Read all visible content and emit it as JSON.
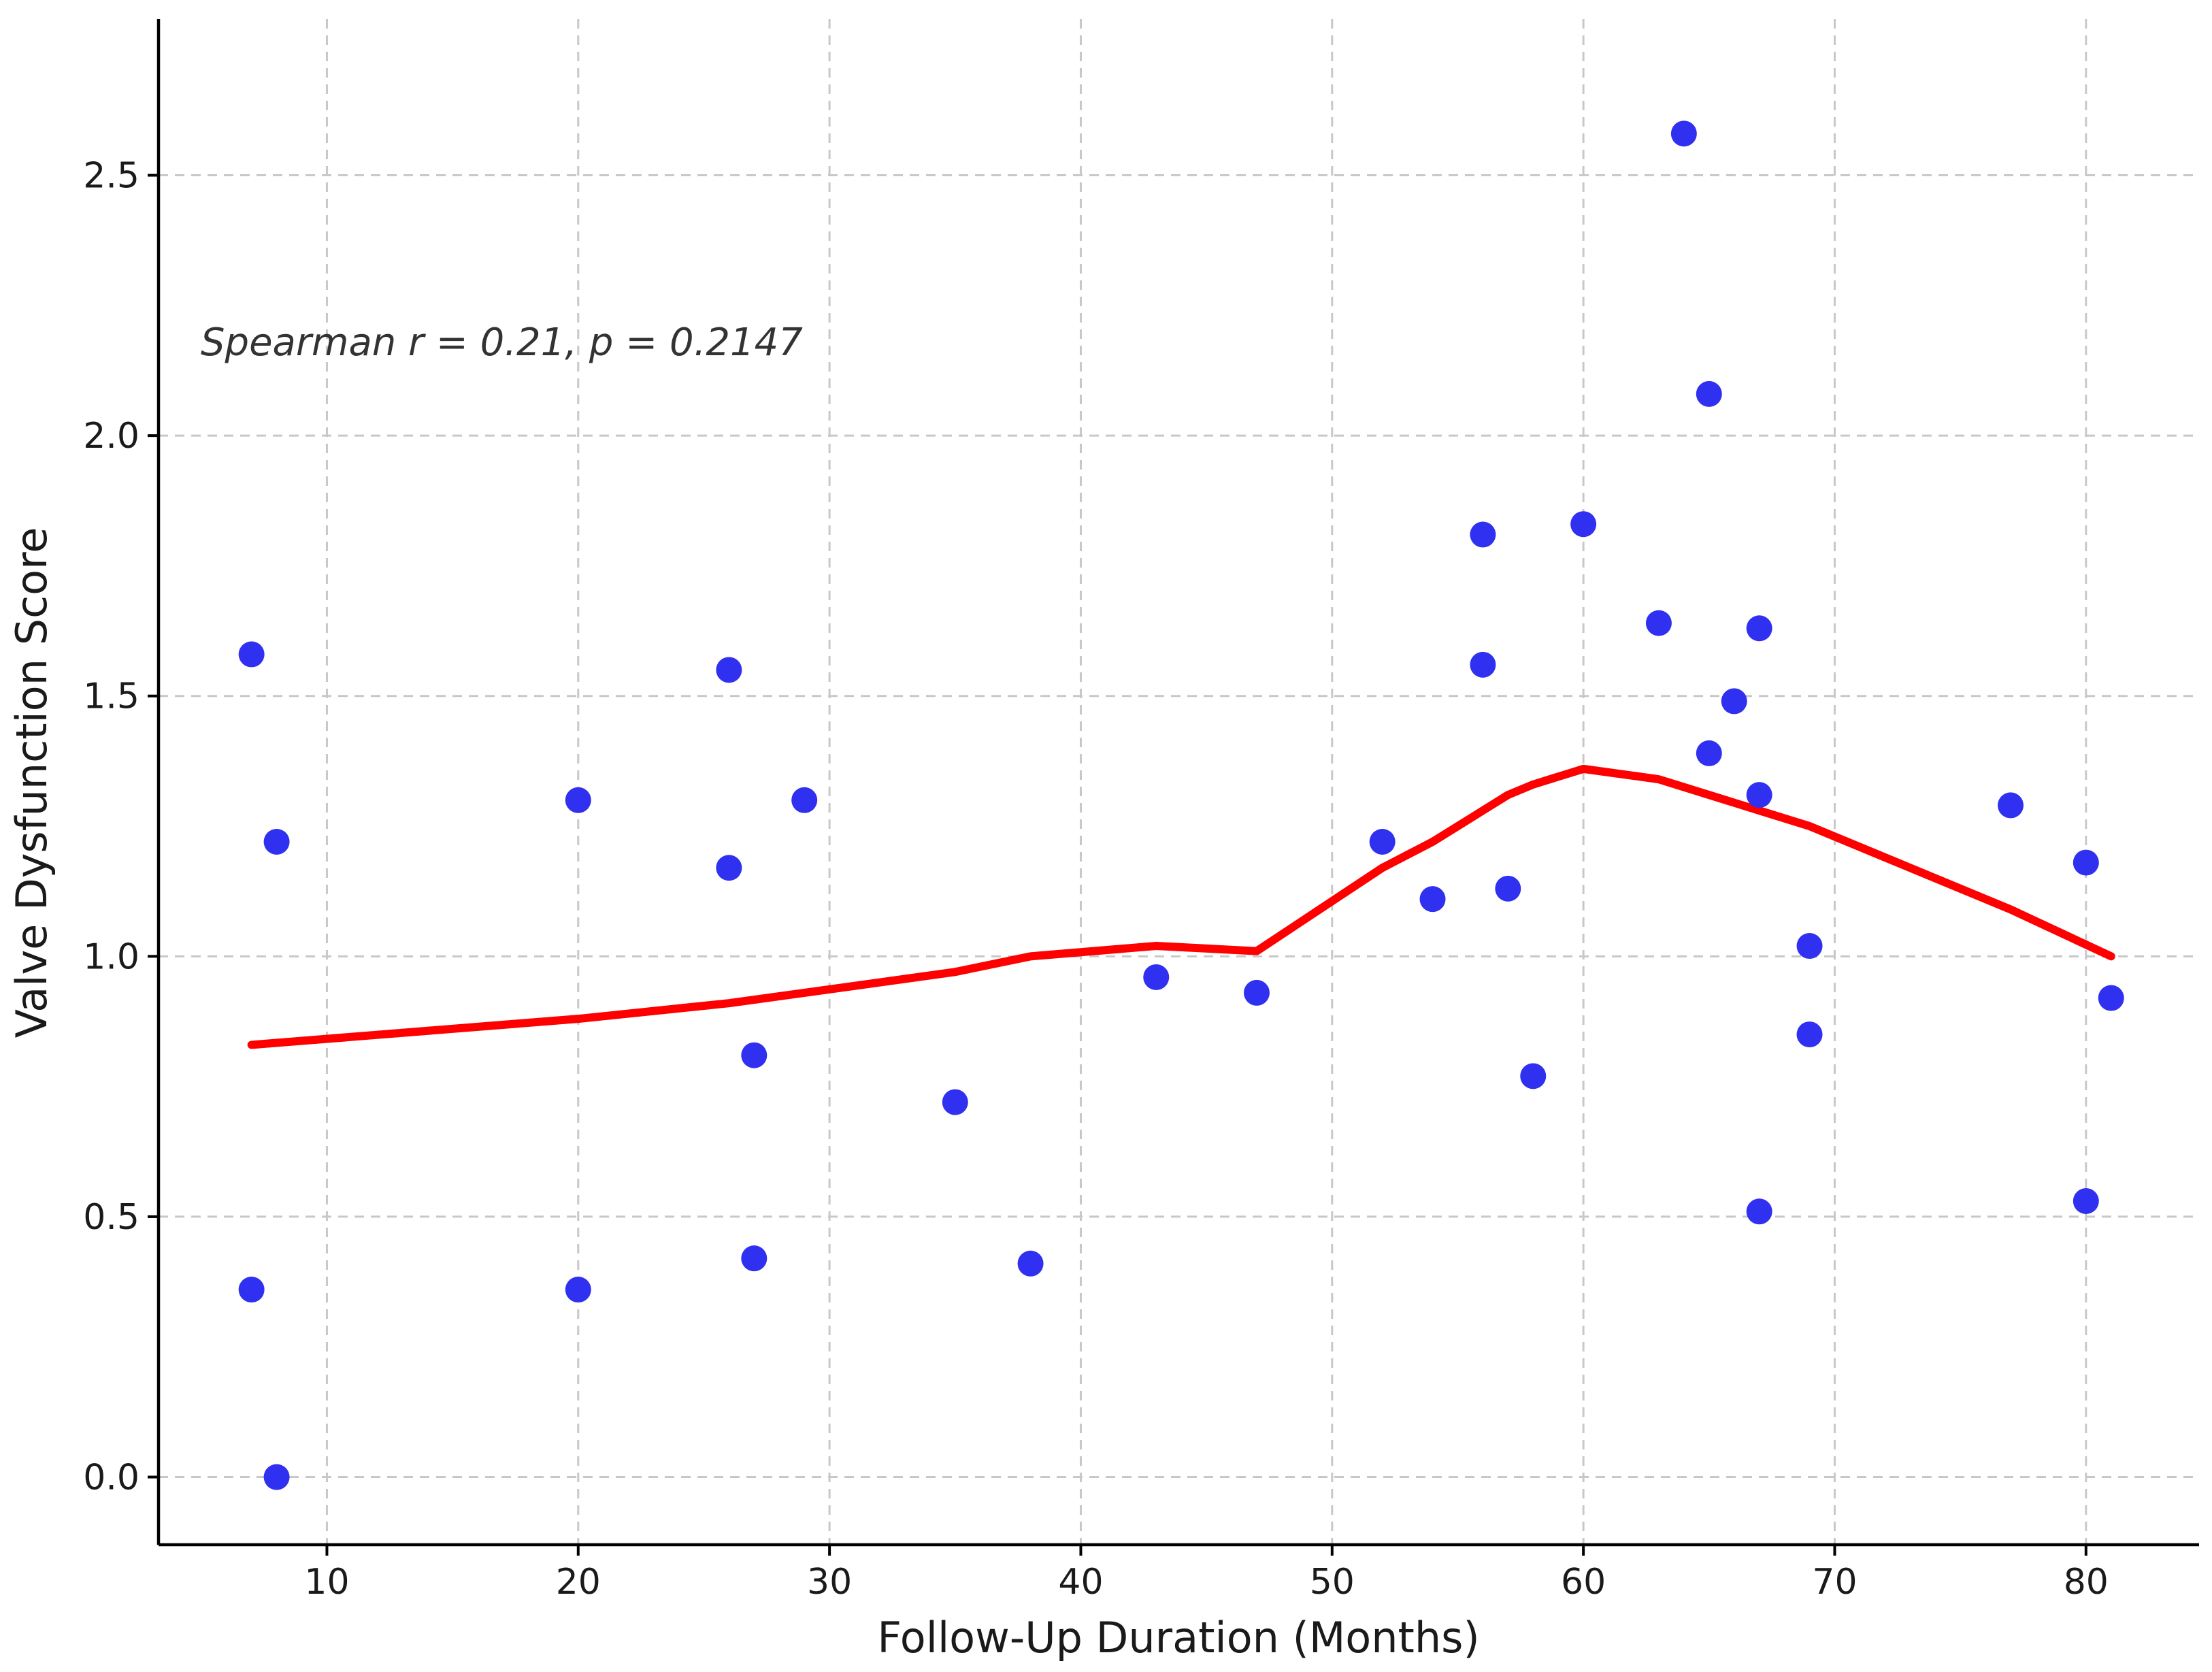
{
  "chart_data": {
    "type": "scatter",
    "xlabel": "Follow-Up Duration (Months)",
    "ylabel": "Valve Dysfunction Score",
    "annotation": "Spearman r = 0.21, p = 0.2147",
    "xlim": [
      3.3,
      84.5
    ],
    "ylim": [
      -0.13,
      2.8
    ],
    "xticks": [
      10,
      20,
      30,
      40,
      50,
      60,
      70,
      80
    ],
    "xtick_labels": [
      "10",
      "20",
      "30",
      "40",
      "50",
      "60",
      "70",
      "80"
    ],
    "yticks": [
      0.0,
      0.5,
      1.0,
      1.5,
      2.0,
      2.5
    ],
    "ytick_labels": [
      "0.0",
      "0.5",
      "1.0",
      "1.5",
      "2.0",
      "2.5"
    ],
    "grid": true,
    "point_color": "#3030f0",
    "trend_color": "#ff0000",
    "points": [
      {
        "x": 7,
        "y": 1.58
      },
      {
        "x": 7,
        "y": 0.36
      },
      {
        "x": 8,
        "y": 1.22
      },
      {
        "x": 8,
        "y": 0.0
      },
      {
        "x": 20,
        "y": 1.3
      },
      {
        "x": 20,
        "y": 0.36
      },
      {
        "x": 26,
        "y": 1.55
      },
      {
        "x": 26,
        "y": 1.17
      },
      {
        "x": 27,
        "y": 0.81
      },
      {
        "x": 27,
        "y": 0.42
      },
      {
        "x": 29,
        "y": 1.3
      },
      {
        "x": 35,
        "y": 0.72
      },
      {
        "x": 38,
        "y": 0.41
      },
      {
        "x": 43,
        "y": 0.96
      },
      {
        "x": 47,
        "y": 0.93
      },
      {
        "x": 52,
        "y": 1.22
      },
      {
        "x": 54,
        "y": 1.11
      },
      {
        "x": 56,
        "y": 1.81
      },
      {
        "x": 56,
        "y": 1.56
      },
      {
        "x": 57,
        "y": 1.13
      },
      {
        "x": 58,
        "y": 0.77
      },
      {
        "x": 60,
        "y": 1.83
      },
      {
        "x": 63,
        "y": 1.64
      },
      {
        "x": 64,
        "y": 2.58
      },
      {
        "x": 65,
        "y": 2.08
      },
      {
        "x": 65,
        "y": 1.39
      },
      {
        "x": 66,
        "y": 1.49
      },
      {
        "x": 67,
        "y": 1.63
      },
      {
        "x": 67,
        "y": 1.31
      },
      {
        "x": 67,
        "y": 0.51
      },
      {
        "x": 69,
        "y": 1.02
      },
      {
        "x": 69,
        "y": 0.85
      },
      {
        "x": 77,
        "y": 1.29
      },
      {
        "x": 80,
        "y": 1.18
      },
      {
        "x": 80,
        "y": 0.53
      },
      {
        "x": 81,
        "y": 0.92
      }
    ],
    "trend": [
      {
        "x": 7,
        "y": 0.83
      },
      {
        "x": 20,
        "y": 0.88
      },
      {
        "x": 26,
        "y": 0.91
      },
      {
        "x": 29,
        "y": 0.93
      },
      {
        "x": 35,
        "y": 0.97
      },
      {
        "x": 38,
        "y": 1.0
      },
      {
        "x": 43,
        "y": 1.02
      },
      {
        "x": 47,
        "y": 1.01
      },
      {
        "x": 52,
        "y": 1.17
      },
      {
        "x": 54,
        "y": 1.22
      },
      {
        "x": 56,
        "y": 1.28
      },
      {
        "x": 57,
        "y": 1.31
      },
      {
        "x": 58,
        "y": 1.33
      },
      {
        "x": 60,
        "y": 1.36
      },
      {
        "x": 63,
        "y": 1.34
      },
      {
        "x": 65,
        "y": 1.31
      },
      {
        "x": 67,
        "y": 1.28
      },
      {
        "x": 69,
        "y": 1.25
      },
      {
        "x": 77,
        "y": 1.09
      },
      {
        "x": 81,
        "y": 1.0
      }
    ]
  }
}
